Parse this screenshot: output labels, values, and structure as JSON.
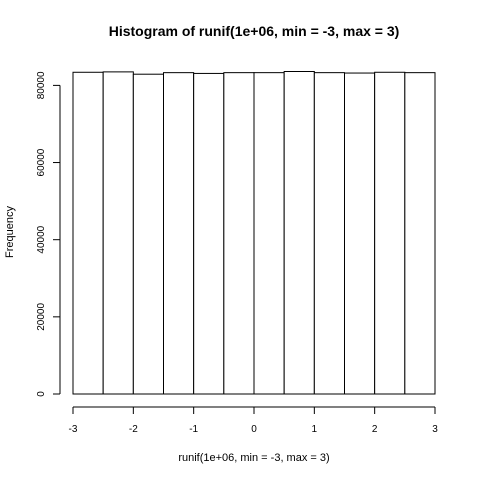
{
  "chart_data": {
    "type": "bar",
    "title": "Histogram of runif(1e+06, min = -3, max = 3)",
    "xlabel": "runif(1e+06, min = -3, max = 3)",
    "ylabel": "Frequency",
    "bin_edges": [
      -3,
      -2.5,
      -2,
      -1.5,
      -1,
      -0.5,
      0,
      0.5,
      1,
      1.5,
      2,
      2.5,
      3
    ],
    "values": [
      83400,
      83500,
      82900,
      83300,
      83100,
      83300,
      83300,
      83600,
      83300,
      83200,
      83400,
      83300
    ],
    "xlim": [
      -3,
      3
    ],
    "ylim": [
      0,
      83600
    ],
    "x_ticks": [
      "-3",
      "-2",
      "-1",
      "0",
      "1",
      "2",
      "3"
    ],
    "x_tick_values": [
      -3,
      -2,
      -1,
      0,
      1,
      2,
      3
    ],
    "y_ticks": [
      "0",
      "20000",
      "40000",
      "60000",
      "80000"
    ],
    "y_tick_values": [
      0,
      20000,
      40000,
      60000,
      80000
    ],
    "grid": false,
    "legend": "none",
    "bar_fill": "#ffffff",
    "bar_stroke": "#000000"
  }
}
